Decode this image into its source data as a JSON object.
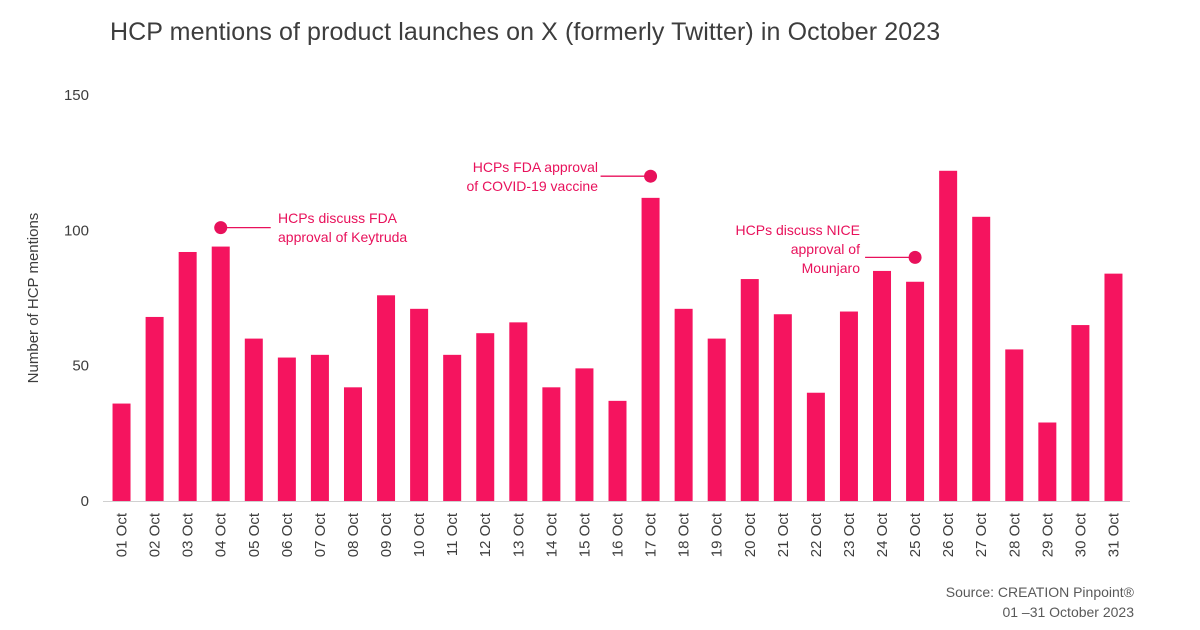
{
  "chart_data": {
    "type": "bar",
    "title": "HCP mentions of product launches on X (formerly Twitter) in October 2023",
    "ylabel": "Number of HCP mentions",
    "xlabel": "",
    "ylim": [
      0,
      150
    ],
    "yticks": [
      0,
      50,
      100,
      150
    ],
    "grid": false,
    "bar_color": "#f5145f",
    "categories": [
      "01 Oct",
      "02 Oct",
      "03 Oct",
      "04 Oct",
      "05 Oct",
      "06 Oct",
      "07 Oct",
      "08 Oct",
      "09 Oct",
      "10 Oct",
      "11 Oct",
      "12 Oct",
      "13 Oct",
      "14 Oct",
      "15 Oct",
      "16 Oct",
      "17 Oct",
      "18 Oct",
      "19 Oct",
      "20 Oct",
      "21 Oct",
      "22 Oct",
      "23 Oct",
      "24 Oct",
      "25 Oct",
      "26 Oct",
      "27 Oct",
      "28 Oct",
      "29 Oct",
      "30 Oct",
      "31 Oct"
    ],
    "values": [
      36,
      68,
      92,
      94,
      60,
      53,
      54,
      42,
      76,
      71,
      54,
      62,
      66,
      42,
      49,
      37,
      112,
      71,
      60,
      82,
      69,
      40,
      70,
      85,
      81,
      122,
      105,
      56,
      29,
      65,
      84
    ],
    "annotations": [
      {
        "target_index": 3,
        "marker_value": 101,
        "side": "right",
        "lines": [
          "HCPs discuss FDA",
          "approval of Keytruda"
        ]
      },
      {
        "target_index": 16,
        "marker_value": 120,
        "side": "left",
        "lines": [
          "HCPs FDA approval",
          "of COVID-19 vaccine"
        ]
      },
      {
        "target_index": 24,
        "marker_value": 90,
        "side": "left",
        "lines": [
          "HCPs discuss NICE",
          "approval of",
          "Mounjaro"
        ]
      }
    ],
    "annotation_color": "#e8115b",
    "source": [
      "Source: CREATION Pinpoint®",
      "01 –31 October 2023"
    ]
  }
}
